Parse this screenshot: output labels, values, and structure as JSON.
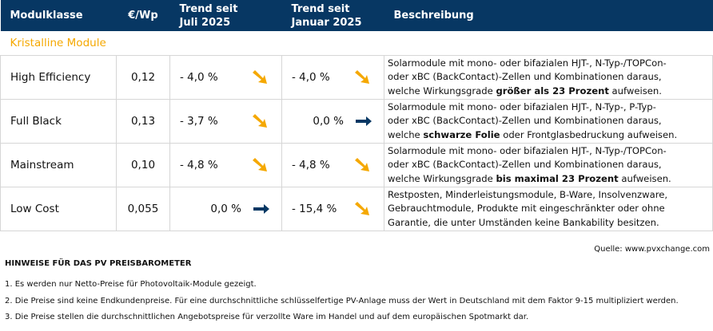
{
  "header": {
    "col1": "Modulklasse",
    "col2": "€/Wp",
    "col3": "Trend seit\nJuli 2025",
    "col3a": "Trend seit",
    "col3b": "Juli 2025",
    "col4a": "Trend seit",
    "col4b": "Januar 2025",
    "col5": "Beschreibung"
  },
  "section": "Kristalline Module",
  "rows": [
    {
      "name": "High Efficiency",
      "price": "0,12",
      "trend_jul": "-  4,0 %",
      "trend_jul_icon": "arrow-down-right",
      "trend_jan": "-  4,0 %",
      "trend_jan_icon": "arrow-down-right",
      "desc1": "Solarmodule mit mono- oder bifazialen HJT-, N-Typ-/TOPCon-",
      "desc2": "oder xBC (BackContact)-Zellen und Kombinationen daraus,",
      "desc3_pre": "welche Wirkungsgrade ",
      "desc3_bold": "größer als 23 Prozent",
      "desc3_post": " aufweisen."
    },
    {
      "name": "Full Black",
      "price": "0,13",
      "trend_jul": "-  3,7 %",
      "trend_jul_icon": "arrow-down-right",
      "trend_jan": "0,0 %",
      "trend_jan_icon": "arrow-right",
      "desc1": "Solarmodule mit mono- oder bifazialen HJT-, N-Typ-, P-Typ-",
      "desc2": "oder xBC (BackContact)-Zellen und Kombinationen daraus,",
      "desc3_pre": "welche ",
      "desc3_bold": "schwarze Folie",
      "desc3_post": " oder Frontglasbedruckung aufweisen."
    },
    {
      "name": "Mainstream",
      "price": "0,10",
      "trend_jul": "-  4,8 %",
      "trend_jul_icon": "arrow-down-right",
      "trend_jan": "-  4,8 %",
      "trend_jan_icon": "arrow-down-right",
      "desc1": "Solarmodule mit mono- oder bifazialen HJT-, N-Typ-/TOPCon-",
      "desc2": "oder xBC (BackContact)-Zellen und Kombinationen daraus,",
      "desc3_pre": "welche Wirkungsgrade ",
      "desc3_bold": "bis maximal 23 Prozent",
      "desc3_post": " aufweisen."
    },
    {
      "name": "Low Cost",
      "price": "0,055",
      "trend_jul": "0,0 %",
      "trend_jul_icon": "arrow-right",
      "trend_jan": "- 15,4 %",
      "trend_jan_icon": "arrow-down-right",
      "desc1": "Restposten, Minderleistungsmodule, B-Ware, Insolvenzware,",
      "desc2": "Gebrauchtmodule, Produkte mit eingeschränkter oder ohne",
      "desc3_pre": "Garantie, die unter Umständen keine Bankability besitzen.",
      "desc3_bold": "",
      "desc3_post": ""
    }
  ],
  "source": "Quelle: www.pvxchange.com",
  "notes": {
    "title": "HINWEISE FÜR DAS PV PREISBAROMETER",
    "items": [
      "1.  Es werden nur Netto-Preise für Photovoltaik-Module gezeigt.",
      "2. Die Preise sind keine Endkundenpreise. Für eine durchschnittliche schlüsselfertige PV-Anlage muss der Wert in Deutschland mit dem Faktor 9-15 multipliziert werden.",
      "3. Die Preise stellen die durchschnittlichen Angebotspreise für verzollte Ware im Handel und auf dem europäischen Spotmarkt dar."
    ]
  },
  "colors": {
    "header": "#073763",
    "accent": "#f5a800",
    "arrow_right": "#073763"
  }
}
